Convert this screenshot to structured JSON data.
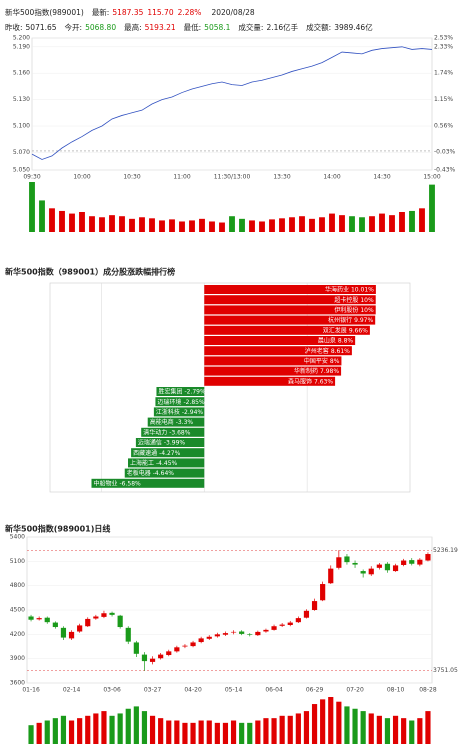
{
  "header": {
    "name": "新华500指数(989001)",
    "latest_label": "最新:",
    "latest": 5187.35,
    "change": "115.70",
    "change_pct": "2.28%",
    "date": "2020/08/28",
    "prev_close_label": "昨收:",
    "prev_close": 5071.65,
    "open_label": "今开:",
    "open": "5068.80",
    "high_label": "最高:",
    "high": 5193.21,
    "low_label": "最低:",
    "low": 5058.1,
    "volume_label": "成交量:",
    "volume": "2.16亿手",
    "amount_label": "成交额:",
    "amount": "3989.46亿"
  },
  "chart_data": [
    {
      "type": "line",
      "color": "#3050c0",
      "x": [
        0,
        6,
        12,
        18,
        24,
        30,
        36,
        42,
        48,
        54,
        60,
        66,
        72,
        78,
        84,
        90,
        96,
        102,
        108,
        114,
        120,
        126,
        132,
        138,
        144,
        150,
        156,
        162,
        168,
        174,
        180,
        186,
        192,
        198,
        204,
        210,
        216,
        222,
        228,
        234,
        240
      ],
      "values": [
        5068,
        5062,
        5066,
        5075,
        5082,
        5088,
        5095,
        5100,
        5108,
        5112,
        5115,
        5118,
        5125,
        5130,
        5133,
        5138,
        5142,
        5145,
        5148,
        5150,
        5147,
        5146,
        5150,
        5152,
        5155,
        5158,
        5162,
        5165,
        5168,
        5172,
        5178,
        5184,
        5183,
        5182,
        5186,
        5188,
        5189,
        5190,
        5187,
        5188,
        5187
      ],
      "xlim": [
        0,
        240
      ],
      "xticks": [
        {
          "value": 0,
          "label": "09:30"
        },
        {
          "value": 30,
          "label": "10:00"
        },
        {
          "value": 60,
          "label": "10:30"
        },
        {
          "value": 90,
          "label": "11:00"
        },
        {
          "value": 120,
          "label": "11:30/13:00"
        },
        {
          "value": 150,
          "label": "13:30"
        },
        {
          "value": 180,
          "label": "14:00"
        },
        {
          "value": 210,
          "label": "14:30"
        },
        {
          "value": 240,
          "label": "15:00"
        }
      ],
      "ylim": [
        5050,
        5200
      ],
      "yticks": [
        {
          "value": 5200,
          "label": "5.200"
        },
        {
          "value": 5190,
          "label": "5.190"
        },
        {
          "value": 5160,
          "label": "5.160"
        },
        {
          "value": 5130,
          "label": "5.130"
        },
        {
          "value": 5100,
          "label": "5.100"
        },
        {
          "value": 5070,
          "label": "5.070"
        },
        {
          "value": 5050,
          "label": "5.050"
        }
      ],
      "y2lim": [
        -0.43,
        2.53
      ],
      "y2ticks": [
        {
          "value": 2.53,
          "label": "2.53%"
        },
        {
          "value": 2.33,
          "label": "2.33%"
        },
        {
          "value": 1.74,
          "label": "1.74%"
        },
        {
          "value": 1.15,
          "label": "1.15%"
        },
        {
          "value": 0.56,
          "label": "0.56%"
        },
        {
          "value": -0.03,
          "label": "-0.03%"
        },
        {
          "value": -0.43,
          "label": "-0.43%"
        }
      ],
      "grid": true
    },
    {
      "type": "bar",
      "up_color": "#e00000",
      "down_color": "#1a9a1a",
      "values": [
        95,
        60,
        45,
        40,
        35,
        38,
        30,
        28,
        32,
        30,
        25,
        28,
        26,
        22,
        24,
        20,
        22,
        25,
        20,
        18,
        30,
        25,
        22,
        20,
        24,
        26,
        28,
        30,
        25,
        28,
        35,
        32,
        30,
        28,
        30,
        35,
        32,
        38,
        40,
        45,
        90
      ]
    },
    {
      "type": "barh",
      "title": "新华500指数（989001）成分股涨跌幅排行榜",
      "up_color": "#e00000",
      "down_color": "#1a8a2a",
      "categories": [
        "华海药业",
        "超卡控股",
        "伊利股份",
        "杭州银行",
        "双汇发展",
        "晨山泉",
        "泸州老窖",
        "中国平安",
        "华新制药",
        "森马服饰",
        "胜宏集团",
        "迈瑞环境",
        "江浙科技",
        "高能电商",
        "清华动力",
        "迈瑞通信",
        "西藏速通",
        "上海能工",
        "老板电器",
        "中船物业"
      ],
      "values": [
        10.01,
        10,
        10,
        9.97,
        9.66,
        8.8,
        8.61,
        8,
        7.98,
        7.63,
        -2.79,
        -2.85,
        -2.94,
        -3.3,
        -3.68,
        -3.99,
        -4.27,
        -4.45,
        -4.64,
        -6.58
      ],
      "value_labels": [
        "10.01%",
        "10%",
        "10%",
        "9.97%",
        "9.66%",
        "8.8%",
        "8.61%",
        "8%",
        "7.98%",
        "7.63%",
        "-2.79%",
        "-2.85%",
        "-2.94%",
        "-3.3%",
        "-3.68%",
        "-3.99%",
        "-4.27%",
        "-4.45%",
        "-4.64%",
        "-6.58%"
      ],
      "xlim": [
        -9,
        12
      ],
      "gridlines": [
        -6,
        0,
        6
      ]
    },
    {
      "type": "candlestick",
      "title": "新华500指数(989001)日线",
      "up_color": "#e00000",
      "down_color": "#1a9a1a",
      "categories": [
        "01-16",
        null,
        null,
        null,
        null,
        "02-14",
        null,
        null,
        null,
        null,
        "03-06",
        null,
        null,
        null,
        null,
        "03-27",
        null,
        null,
        null,
        null,
        "04-20",
        null,
        null,
        null,
        null,
        "05-14",
        null,
        null,
        null,
        null,
        "06-04",
        null,
        null,
        null,
        null,
        "06-29",
        null,
        null,
        null,
        null,
        "07-20",
        null,
        null,
        null,
        null,
        "08-10",
        null,
        null,
        null,
        "08-28"
      ],
      "open": [
        4420,
        4385,
        4405,
        4345,
        4280,
        4150,
        4235,
        4300,
        4395,
        4415,
        4465,
        4430,
        4280,
        4100,
        3950,
        3860,
        3905,
        3945,
        3990,
        4050,
        4055,
        4105,
        4145,
        4175,
        4195,
        4225,
        4235,
        4200,
        4190,
        4235,
        4255,
        4305,
        4315,
        4350,
        4405,
        4500,
        4620,
        4830,
        5020,
        5160,
        5080,
        4980,
        4940,
        5020,
        5070,
        4980,
        5055,
        5115,
        5060,
        5110
      ],
      "high": [
        4440,
        4420,
        4420,
        4360,
        4300,
        4250,
        4330,
        4410,
        4440,
        4490,
        4480,
        4440,
        4300,
        4120,
        3980,
        3930,
        3970,
        4010,
        4060,
        4080,
        4120,
        4170,
        4190,
        4220,
        4235,
        4250,
        4250,
        4215,
        4245,
        4270,
        4320,
        4340,
        4365,
        4420,
        4510,
        4640,
        4850,
        5050,
        5236.19,
        5190,
        5110,
        5000,
        5040,
        5080,
        5090,
        5070,
        5130,
        5140,
        5140,
        5210
      ],
      "low": [
        4360,
        4370,
        4330,
        4270,
        4130,
        4130,
        4220,
        4290,
        4380,
        4400,
        4420,
        4270,
        4080,
        3920,
        3751.05,
        3830,
        3890,
        3930,
        3975,
        4030,
        4040,
        4090,
        4130,
        4160,
        4180,
        4200,
        4190,
        4175,
        4180,
        4220,
        4245,
        4290,
        4300,
        4340,
        4395,
        4490,
        4610,
        4820,
        5000,
        5060,
        5020,
        4900,
        4920,
        5000,
        4960,
        4970,
        5040,
        5050,
        5040,
        5100
      ],
      "close": [
        4380,
        4400,
        4350,
        4290,
        4160,
        4230,
        4310,
        4390,
        4420,
        4460,
        4440,
        4290,
        4110,
        3960,
        3870,
        3900,
        3950,
        3990,
        4040,
        4060,
        4100,
        4150,
        4170,
        4200,
        4215,
        4230,
        4205,
        4195,
        4230,
        4255,
        4300,
        4320,
        4345,
        4400,
        4490,
        4610,
        4820,
        5010,
        5150,
        5090,
        5060,
        4950,
        5010,
        5060,
        4990,
        5050,
        5110,
        5070,
        5120,
        5190
      ],
      "ylim": [
        3600,
        5400
      ],
      "yticks": [
        5400,
        5100,
        4800,
        4500,
        4200,
        3900,
        3600
      ],
      "grid": true,
      "reference_lines": [
        5236.19,
        3751.05
      ]
    },
    {
      "type": "bar",
      "values": [
        40,
        45,
        50,
        55,
        60,
        50,
        55,
        60,
        65,
        70,
        60,
        65,
        75,
        80,
        70,
        60,
        55,
        50,
        50,
        45,
        45,
        50,
        50,
        45,
        45,
        50,
        45,
        45,
        50,
        55,
        55,
        60,
        60,
        65,
        70,
        85,
        95,
        100,
        90,
        80,
        75,
        70,
        65,
        60,
        55,
        60,
        55,
        50,
        55,
        70
      ]
    }
  ]
}
